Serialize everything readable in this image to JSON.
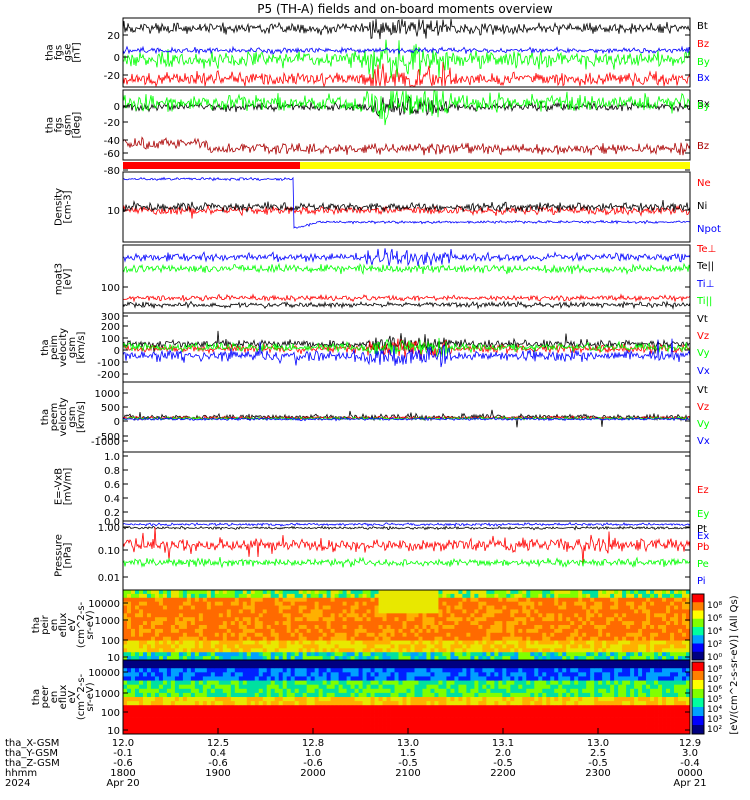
{
  "title": "P5 (TH-A) fields and on-board moments overview",
  "colors": {
    "black": "#000000",
    "red": "#ff0000",
    "green": "#00ff00",
    "blue": "#0000ff",
    "darkred": "#aa0000",
    "yellow": "#ffff00"
  },
  "chart_data": [
    {
      "id": "fgs",
      "type": "line",
      "ylabel": [
        "tha",
        "fgs",
        "gse",
        "[nT]"
      ],
      "yticks": [
        "20",
        "0",
        "-20"
      ],
      "ylim": [
        -30,
        35
      ],
      "series": [
        {
          "name": "Bt",
          "color": "black",
          "level": 28,
          "noise": 7
        },
        {
          "name": "Bz",
          "color": "red",
          "level": -17,
          "noise": 6
        },
        {
          "name": "By",
          "color": "green",
          "level": -3,
          "noise": 9
        },
        {
          "name": "Bx",
          "color": "blue",
          "level": 4,
          "noise": 3
        }
      ]
    },
    {
      "id": "fgs_gsm",
      "type": "line",
      "ylabel": [
        "tha",
        "fgs",
        "gsm",
        "[deg]"
      ],
      "yticks": [
        "0",
        "-20",
        "-40",
        "-60",
        "-80"
      ],
      "ylim": [
        -95,
        20
      ],
      "series": [
        {
          "name": "Bx",
          "color": "black",
          "level": -3,
          "noise": 6
        },
        {
          "name": "By",
          "color": "green",
          "level": 3,
          "noise": 10
        },
        {
          "name": "Bz",
          "color": "darkred",
          "level": -80,
          "noise": 8
        }
      ]
    },
    {
      "id": "density",
      "type": "line",
      "ylabel": [
        "Density",
        "[cm-3]"
      ],
      "yticks": [
        "10"
      ],
      "scale": "log",
      "series": [
        {
          "name": "Ne",
          "color": "red"
        },
        {
          "name": "Ni",
          "color": "black"
        },
        {
          "name": "Npot",
          "color": "blue"
        }
      ]
    },
    {
      "id": "temperature",
      "type": "line",
      "ylabel": [
        "moat3",
        "[eV]"
      ],
      "yticks": [
        "100"
      ],
      "scale": "log",
      "series": [
        {
          "name": "Te⊥",
          "color": "red"
        },
        {
          "name": "Te||",
          "color": "black"
        },
        {
          "name": "Ti⊥",
          "color": "blue"
        },
        {
          "name": "Ti||",
          "color": "green"
        }
      ]
    },
    {
      "id": "peim",
      "type": "line",
      "ylabel": [
        "tha",
        "peim",
        "velocity",
        "gsm",
        "[km/s]"
      ],
      "yticks": [
        "300",
        "200",
        "100",
        "0",
        "-100",
        "-200"
      ],
      "ylim": [
        -250,
        320
      ],
      "series": [
        {
          "name": "Vt",
          "color": "black"
        },
        {
          "name": "Vz",
          "color": "red"
        },
        {
          "name": "Vy",
          "color": "green"
        },
        {
          "name": "Vx",
          "color": "blue"
        }
      ]
    },
    {
      "id": "peem",
      "type": "line",
      "ylabel": [
        "tha",
        "peem",
        "velocity",
        "gsm",
        "[km/s]"
      ],
      "yticks": [
        "1000",
        "500",
        "0",
        "-500",
        "-1000"
      ],
      "ylim": [
        -1300,
        1300
      ],
      "series": [
        {
          "name": "Vt",
          "color": "black"
        },
        {
          "name": "Vz",
          "color": "red"
        },
        {
          "name": "Vy",
          "color": "green"
        },
        {
          "name": "Vx",
          "color": "blue"
        }
      ]
    },
    {
      "id": "efield",
      "type": "line",
      "ylabel": [
        "E=-VxB",
        "[mV/m]"
      ],
      "yticks": [
        "1.0",
        "0.8",
        "0.6",
        "0.4",
        "0.2",
        "0.0"
      ],
      "ylim": [
        0,
        1
      ],
      "series": [
        {
          "name": "Ez",
          "color": "red"
        },
        {
          "name": "Ey",
          "color": "green"
        },
        {
          "name": "Ex",
          "color": "blue"
        }
      ]
    },
    {
      "id": "pressure",
      "type": "line",
      "ylabel": [
        "Pressure",
        "[nPa]"
      ],
      "yticks": [
        "1.00",
        "0.10",
        "0.01"
      ],
      "scale": "log",
      "series": [
        {
          "name": "Pt",
          "color": "black"
        },
        {
          "name": "Pb",
          "color": "red"
        },
        {
          "name": "Pe",
          "color": "green"
        },
        {
          "name": "Pi",
          "color": "blue"
        }
      ]
    },
    {
      "id": "peir",
      "type": "heatmap",
      "ylabel": [
        "tha",
        "peir",
        "en",
        "eflux",
        "eV",
        "(cm^2-s-",
        "sr-eV)"
      ],
      "yticks": [
        "10000",
        "1000",
        "100",
        "10"
      ]
    },
    {
      "id": "peer",
      "type": "heatmap",
      "ylabel": [
        "tha",
        "peer",
        "en",
        "eflux",
        "eV",
        "(cm^2-s-",
        "sr-eV)"
      ],
      "yticks": [
        "10000",
        "1000",
        "100",
        "10"
      ]
    }
  ],
  "colorbar": {
    "label": "[eV/(cm^2-s-sr-eV)] (All Qs)",
    "upper_ticks": [
      "10⁸",
      "10⁶",
      "10⁴",
      "10²",
      "10⁰"
    ],
    "lower_ticks": [
      "10⁸",
      "10⁷",
      "10⁶",
      "10⁵",
      "10⁴",
      "10³",
      "10²"
    ]
  },
  "xaxis": {
    "rows": [
      {
        "label": "tha_X-GSM",
        "values": [
          "12.0",
          "12.5",
          "12.8",
          "13.0",
          "13.1",
          "13.0",
          "12.9"
        ]
      },
      {
        "label": "tha_Y-GSM",
        "values": [
          "-0.1",
          "0.4",
          "1.0",
          "1.5",
          "2.0",
          "2.5",
          "3.0"
        ]
      },
      {
        "label": "tha_Z-GSM",
        "values": [
          "-0.6",
          "-0.6",
          "-0.6",
          "-0.5",
          "-0.5",
          "-0.5",
          "-0.4"
        ]
      },
      {
        "label": "hhmm",
        "values": [
          "1800",
          "1900",
          "2000",
          "2100",
          "2200",
          "2300",
          "0000"
        ]
      },
      {
        "label": "2024",
        "values": [
          "Apr 20",
          "",
          "",
          "",
          "",
          "",
          "Apr 21"
        ]
      }
    ]
  }
}
